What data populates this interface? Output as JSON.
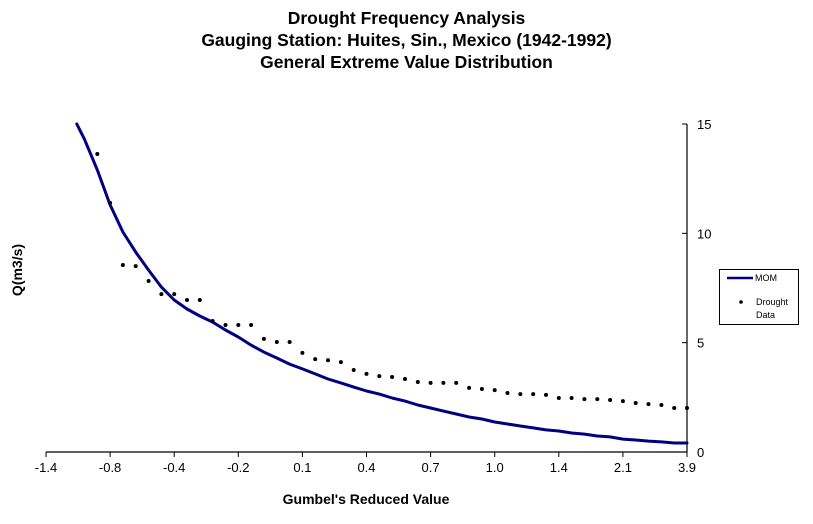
{
  "chart_data": {
    "type": "line",
    "title": "Drought Frequency Analysis",
    "subtitle_lines": [
      "Gauging Station: Huites, Sin., Mexico (1942-1992)",
      "General Extreme Value Distribution"
    ],
    "xlabel": "Gumbel's Reduced Value",
    "ylabel": "Q(m3/s)",
    "x_axis": {
      "kind": "category",
      "category_count": 51,
      "tick_labels": [
        "-1.4",
        "-0.8",
        "-0.4",
        "-0.2",
        "0.1",
        "0.4",
        "0.7",
        "1.0",
        "1.4",
        "2.1",
        "3.9"
      ],
      "tick_every": 5
    },
    "y_axis": {
      "side": "right",
      "ylim": [
        0,
        15
      ],
      "ticks": [
        0,
        5,
        10,
        15
      ]
    },
    "grid": false,
    "legend_position": "right",
    "series": [
      {
        "name": "MOM",
        "kind": "line",
        "color": "#000080",
        "x": [
          2.4,
          3,
          4,
          5,
          6,
          7,
          8,
          9,
          10,
          11,
          12,
          13,
          14,
          15,
          16,
          17,
          18,
          19,
          20,
          21,
          22,
          23,
          24,
          25,
          26,
          27,
          28,
          29,
          30,
          31,
          32,
          33,
          34,
          35,
          36,
          37,
          38,
          39,
          40,
          41,
          42,
          43,
          44,
          45,
          46,
          47,
          48,
          49,
          50
        ],
        "values": [
          15.0,
          14.3,
          12.9,
          11.3,
          10.06,
          9.14,
          8.32,
          7.54,
          6.95,
          6.54,
          6.22,
          5.94,
          5.58,
          5.26,
          4.89,
          4.57,
          4.3,
          4.02,
          3.8,
          3.57,
          3.34,
          3.16,
          2.97,
          2.79,
          2.65,
          2.47,
          2.33,
          2.15,
          2.01,
          1.87,
          1.74,
          1.6,
          1.51,
          1.37,
          1.28,
          1.19,
          1.1,
          1.01,
          0.96,
          0.87,
          0.82,
          0.73,
          0.69,
          0.59,
          0.55,
          0.5,
          0.46,
          0.41,
          0.41
        ]
      },
      {
        "name": "Drought Data",
        "legend_label_lines": [
          "Drought",
          "Data"
        ],
        "kind": "scatter",
        "color": "#000000",
        "x": [
          4,
          5,
          6,
          7,
          8,
          9,
          10,
          11,
          12,
          13,
          14,
          15,
          16,
          17,
          18,
          19,
          20,
          21,
          22,
          23,
          24,
          25,
          26,
          27,
          28,
          29,
          30,
          31,
          32,
          33,
          34,
          35,
          36,
          37,
          38,
          39,
          40,
          41,
          42,
          43,
          44,
          45,
          46,
          47,
          48,
          49,
          50
        ],
        "values": [
          13.63,
          11.39,
          8.55,
          8.5,
          7.82,
          7.22,
          7.22,
          6.95,
          6.95,
          5.99,
          5.81,
          5.81,
          5.81,
          5.17,
          5.03,
          5.03,
          4.53,
          4.25,
          4.2,
          4.11,
          3.75,
          3.57,
          3.47,
          3.43,
          3.34,
          3.2,
          3.16,
          3.16,
          3.16,
          2.93,
          2.88,
          2.83,
          2.7,
          2.65,
          2.65,
          2.61,
          2.47,
          2.47,
          2.42,
          2.42,
          2.38,
          2.33,
          2.24,
          2.19,
          2.15,
          2.01,
          2.01
        ]
      }
    ]
  }
}
